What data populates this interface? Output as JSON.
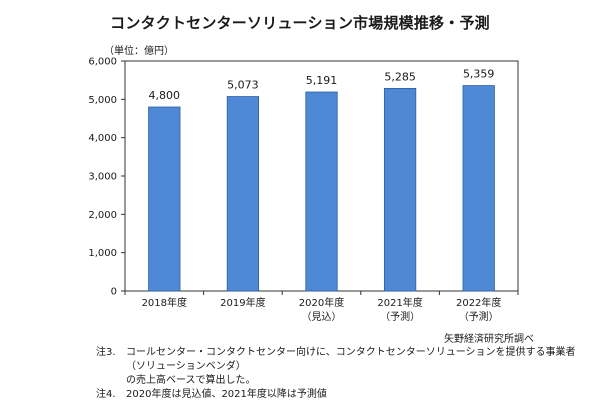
{
  "chart_data": {
    "type": "bar",
    "title": "コンタクトセンターソリューション市場規模推移・予測",
    "unit_label": "（単位：億円）",
    "categories": [
      {
        "year": "2018年度",
        "note": ""
      },
      {
        "year": "2019年度",
        "note": ""
      },
      {
        "year": "2020年度",
        "note": "（見込）"
      },
      {
        "year": "2021年度",
        "note": "（予測）"
      },
      {
        "year": "2022年度",
        "note": "（予測）"
      }
    ],
    "values": [
      4800,
      5073,
      5191,
      5285,
      5359
    ],
    "value_labels": [
      "4,800",
      "5,073",
      "5,191",
      "5,285",
      "5,359"
    ],
    "ylim": [
      0,
      6000
    ],
    "yticks": [
      0,
      1000,
      2000,
      3000,
      4000,
      5000,
      6000
    ],
    "ytick_labels": [
      "0",
      "1,000",
      "2,000",
      "3,000",
      "4,000",
      "5,000",
      "6,000"
    ],
    "grid": false,
    "bar_color": "#4f88d4",
    "bar_edge_color": "#2b5fa8"
  },
  "source": "矢野経済研究所調べ",
  "notes": [
    {
      "label": "注3.",
      "lines": [
        "コールセンター・コンタクトセンター向けに、コンタクトセンターソリューションを提供する事業者（ソリューションベンダ）",
        "の売上高ベースで算出した。"
      ]
    },
    {
      "label": "注4.",
      "lines": [
        "2020年度は見込値、2021年度以降は予測値"
      ]
    }
  ]
}
